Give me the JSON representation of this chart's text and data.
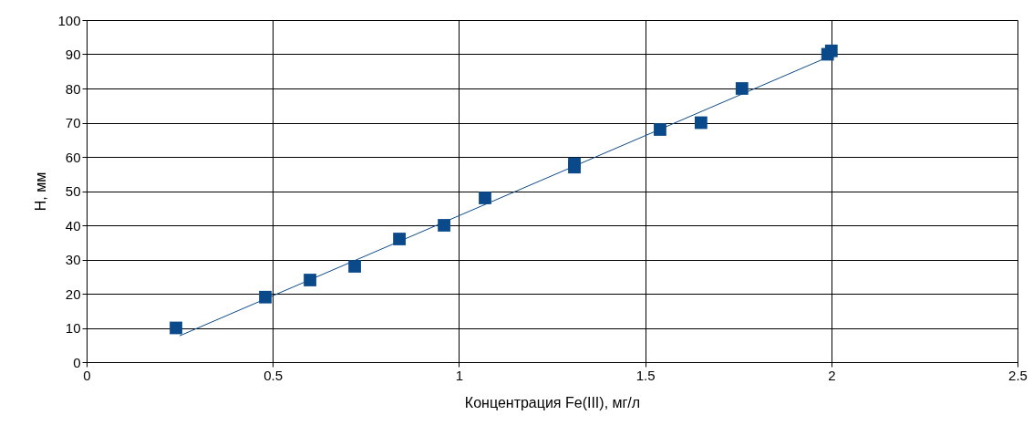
{
  "chart_data": {
    "type": "scatter",
    "xlabel": "Концентрация Fe(III), мг/л",
    "ylabel": "H, мм",
    "xlim": [
      0,
      2.5
    ],
    "xticks": [
      0,
      0.5,
      1,
      1.5,
      2,
      2.5
    ],
    "ylim": [
      0,
      100
    ],
    "yticks": [
      0,
      10,
      20,
      30,
      40,
      50,
      60,
      70,
      80,
      90,
      100
    ],
    "grid": true,
    "marker": "square",
    "series": [
      {
        "color": "#0b4a8a",
        "x": [
          0.24,
          0.48,
          0.6,
          0.72,
          0.84,
          0.96,
          1.07,
          1.31,
          1.31,
          1.54,
          1.65,
          1.76,
          1.99,
          2.0
        ],
        "values": [
          10,
          19,
          24,
          28,
          36,
          40,
          48,
          57,
          58,
          68,
          70,
          80,
          90,
          91
        ]
      },
      {
        "type": "line",
        "marker": "none",
        "line_style": "solid",
        "color": "#0b4a8a",
        "x": [
          0.25,
          2.0
        ],
        "values": [
          7.7,
          89.6
        ]
      }
    ]
  }
}
